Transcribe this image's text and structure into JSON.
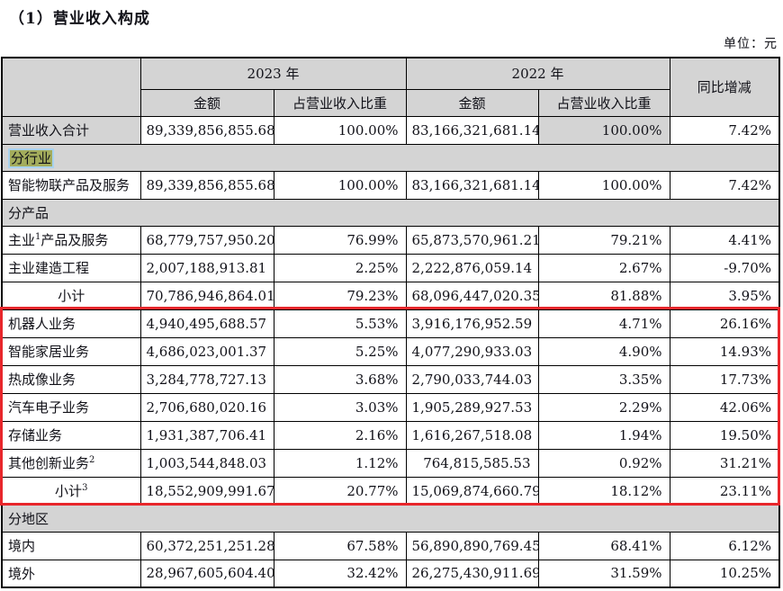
{
  "page": {
    "title": "（1）营业收入构成",
    "unit_label": "单位：元"
  },
  "colors": {
    "cell_gray": "#d4d4d4",
    "red_box": "#e8262b",
    "highlight_green": "#a3ac5c",
    "selection_blue": "#a9d2ee"
  },
  "table": {
    "header": {
      "year_2023": "2023 年",
      "year_2022": "2022 年",
      "amount": "金额",
      "ratio": "占营业收入比重",
      "yoy": "同比增减"
    },
    "rows": [
      {
        "type": "data",
        "label": "营业收入合计",
        "label_gray": true,
        "gray_value_indexes": [
          3
        ],
        "values": [
          "89,339,856,855.68",
          "100.00%",
          "83,166,321,681.14",
          "100.00%",
          "7.42%"
        ]
      },
      {
        "type": "section",
        "label": "分行业",
        "highlight": true
      },
      {
        "type": "data",
        "label": "智能物联产品及服务",
        "values": [
          "89,339,856,855.68",
          "100.00%",
          "83,166,321,681.14",
          "100.00%",
          "7.42%"
        ]
      },
      {
        "type": "section",
        "label": "分产品"
      },
      {
        "type": "data",
        "label": "主业",
        "sup": "1",
        "label_rest": "产品及服务",
        "values": [
          "68,779,757,950.20",
          "76.99%",
          "65,873,570,961.21",
          "79.21%",
          "4.41%"
        ]
      },
      {
        "type": "data",
        "label": "主业建造工程",
        "values": [
          "2,007,188,913.81",
          "2.25%",
          "2,222,876,059.14",
          "2.67%",
          "-9.70%"
        ]
      },
      {
        "type": "data",
        "label": "小计",
        "center": true,
        "values": [
          "70,786,946,864.01",
          "79.23%",
          "68,096,447,020.35",
          "81.88%",
          "3.95%"
        ]
      },
      {
        "type": "data",
        "label": "机器人业务",
        "values": [
          "4,940,495,688.57",
          "5.53%",
          "3,916,176,952.59",
          "4.71%",
          "26.16%"
        ]
      },
      {
        "type": "data",
        "label": "智能家居业务",
        "values": [
          "4,686,023,001.37",
          "5.25%",
          "4,077,290,933.03",
          "4.90%",
          "14.93%"
        ]
      },
      {
        "type": "data",
        "label": "热成像业务",
        "values": [
          "3,284,778,727.13",
          "3.68%",
          "2,790,033,744.03",
          "3.35%",
          "17.73%"
        ]
      },
      {
        "type": "data",
        "label": "汽车电子业务",
        "values": [
          "2,706,680,020.16",
          "3.03%",
          "1,905,289,927.53",
          "2.29%",
          "42.06%"
        ]
      },
      {
        "type": "data",
        "label": "存储业务",
        "values": [
          "1,931,387,706.41",
          "2.16%",
          "1,616,267,518.08",
          "1.94%",
          "19.50%"
        ]
      },
      {
        "type": "data",
        "label": "其他创新业务",
        "sup": "2",
        "label_rest": "",
        "values": [
          "1,003,544,848.03",
          "1.12%",
          "764,815,585.53",
          "0.92%",
          "31.21%"
        ]
      },
      {
        "type": "data",
        "label": "小计",
        "sup": "3",
        "label_rest": "",
        "center": true,
        "values": [
          "18,552,909,991.67",
          "20.77%",
          "15,069,874,660.79",
          "18.12%",
          "23.11%"
        ]
      },
      {
        "type": "section",
        "label": "分地区"
      },
      {
        "type": "data",
        "label": "境内",
        "values": [
          "60,372,251,251.28",
          "67.58%",
          "56,890,890,769.45",
          "68.41%",
          "6.12%"
        ]
      },
      {
        "type": "data",
        "label": "境外",
        "values": [
          "28,967,605,604.40",
          "32.42%",
          "26,275,430,911.69",
          "31.59%",
          "10.25%"
        ]
      }
    ]
  },
  "annotations": {
    "red_box": {
      "from_row": "机器人业务",
      "to_row": "小计 3"
    }
  }
}
